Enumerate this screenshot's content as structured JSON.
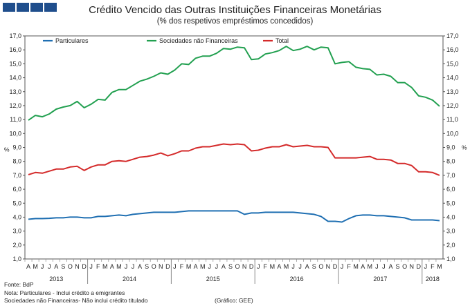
{
  "logo_icon": "bdp-logo-icon",
  "title": "Crédito Vencido das Outras Instituições Financeiras Monetárias",
  "subtitle": "(% dos respetivos empréstimos concedidos)",
  "notes": {
    "source": "Fonte: BdP",
    "note1": "Nota: Particulares - Inclui crédito a emigrantes",
    "note2": "Sociedades não Financeiras- Não inclui crédito titulado",
    "credit": "(Gráfico: GEE)"
  },
  "chart_data": {
    "type": "line",
    "title": "Crédito Vencido das Outras Instituições Financeiras Monetárias",
    "ylabel_left": "%",
    "ylabel_right": "%",
    "ylim": [
      1.0,
      17.0
    ],
    "yticks": [
      "1,0",
      "2,0",
      "3,0",
      "4,0",
      "5,0",
      "6,0",
      "7,0",
      "8,0",
      "9,0",
      "10,0",
      "11,0",
      "12,0",
      "13,0",
      "14,0",
      "15,0",
      "16,0",
      "17,0"
    ],
    "month_labels": [
      "A",
      "M",
      "J",
      "J",
      "A",
      "S",
      "O",
      "N",
      "D",
      "J",
      "F",
      "M",
      "A",
      "M",
      "J",
      "J",
      "A",
      "S",
      "O",
      "N",
      "D",
      "J",
      "F",
      "M",
      "A",
      "M",
      "J",
      "J",
      "A",
      "S",
      "O",
      "N",
      "D",
      "J",
      "F",
      "M",
      "A",
      "M",
      "J",
      "J",
      "A",
      "S",
      "O",
      "N",
      "D",
      "J",
      "F",
      "M",
      "A",
      "M",
      "J",
      "J",
      "A",
      "S",
      "O",
      "N",
      "D",
      "J",
      "F",
      "M"
    ],
    "years": [
      {
        "label": "2013",
        "start": 0,
        "end": 8
      },
      {
        "label": "2014",
        "start": 9,
        "end": 20
      },
      {
        "label": "2015",
        "start": 21,
        "end": 32
      },
      {
        "label": "2016",
        "start": 33,
        "end": 44
      },
      {
        "label": "2017",
        "start": 45,
        "end": 56
      },
      {
        "label": "2018",
        "start": 57,
        "end": 59
      }
    ],
    "legend_position": "top-left",
    "series": [
      {
        "name": "Particulares",
        "color": "#1f6fb2",
        "values": [
          3.85,
          3.9,
          3.9,
          3.92,
          3.95,
          3.95,
          4.0,
          4.0,
          3.95,
          3.95,
          4.05,
          4.05,
          4.1,
          4.15,
          4.1,
          4.2,
          4.25,
          4.3,
          4.35,
          4.35,
          4.35,
          4.35,
          4.4,
          4.45,
          4.45,
          4.45,
          4.45,
          4.45,
          4.45,
          4.45,
          4.45,
          4.2,
          4.3,
          4.3,
          4.35,
          4.35,
          4.35,
          4.35,
          4.35,
          4.3,
          4.25,
          4.2,
          4.05,
          3.7,
          3.7,
          3.65,
          3.9,
          4.1,
          4.15,
          4.15,
          4.1,
          4.1,
          4.05,
          4.0,
          3.95,
          3.8,
          3.8,
          3.8,
          3.8,
          3.75
        ]
      },
      {
        "name": "Sociedades  não Financeiras",
        "color": "#22a050",
        "values": [
          10.95,
          11.3,
          11.2,
          11.4,
          11.75,
          11.9,
          12.0,
          12.3,
          11.85,
          12.1,
          12.45,
          12.4,
          12.95,
          13.15,
          13.15,
          13.45,
          13.75,
          13.9,
          14.1,
          14.35,
          14.25,
          14.55,
          15.0,
          14.95,
          15.4,
          15.55,
          15.55,
          15.75,
          16.1,
          16.05,
          16.2,
          16.15,
          15.3,
          15.35,
          15.7,
          15.8,
          15.95,
          16.25,
          15.95,
          16.05,
          16.25,
          16.0,
          16.2,
          16.15,
          15.0,
          15.1,
          15.15,
          14.75,
          14.65,
          14.6,
          14.2,
          14.25,
          14.1,
          13.65,
          13.65,
          13.3,
          12.7,
          12.6,
          12.4,
          11.95
        ]
      },
      {
        "name": "Total",
        "color": "#d42a2a",
        "values": [
          7.05,
          7.2,
          7.15,
          7.3,
          7.45,
          7.45,
          7.6,
          7.65,
          7.35,
          7.6,
          7.75,
          7.75,
          8.0,
          8.05,
          8.0,
          8.15,
          8.3,
          8.35,
          8.45,
          8.6,
          8.4,
          8.55,
          8.75,
          8.75,
          8.95,
          9.05,
          9.05,
          9.15,
          9.25,
          9.2,
          9.25,
          9.2,
          8.75,
          8.8,
          8.95,
          9.05,
          9.05,
          9.2,
          9.05,
          9.1,
          9.15,
          9.05,
          9.05,
          9.0,
          8.25,
          8.25,
          8.25,
          8.25,
          8.3,
          8.35,
          8.15,
          8.15,
          8.1,
          7.85,
          7.85,
          7.7,
          7.25,
          7.25,
          7.2,
          7.0
        ]
      }
    ]
  }
}
